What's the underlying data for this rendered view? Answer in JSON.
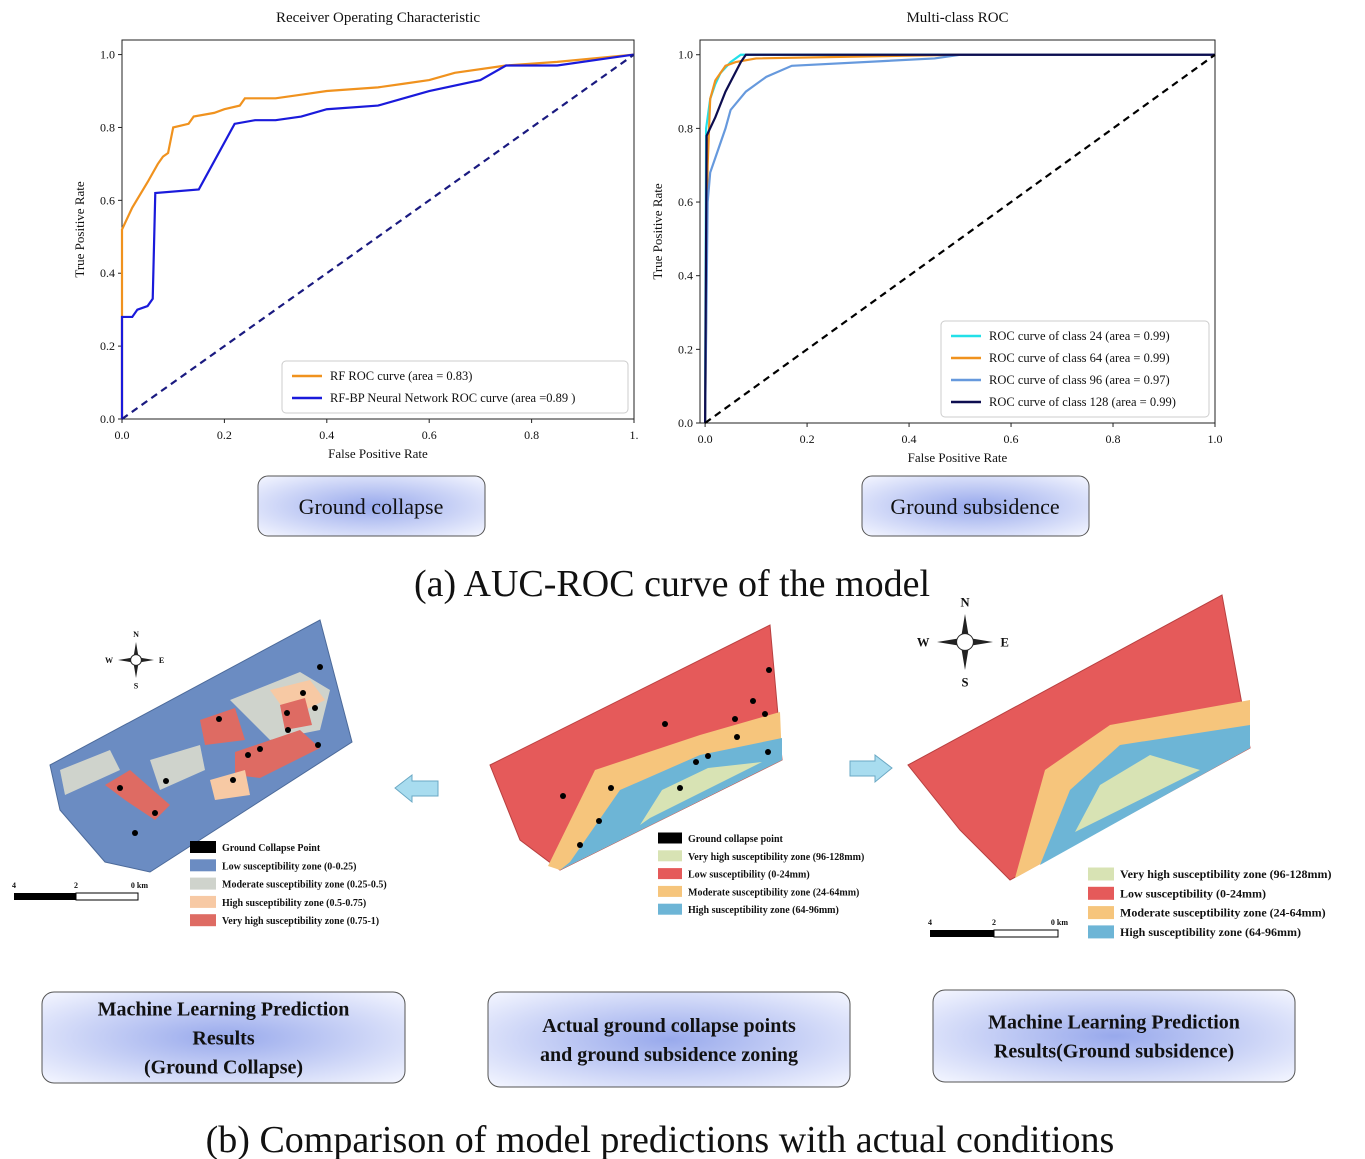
{
  "chart_data": [
    {
      "type": "line",
      "title": "Receiver Operating Characteristic",
      "xlabel": "False Positive Rate",
      "ylabel": "True Positive Rate",
      "xlim": [
        0,
        1
      ],
      "ylim": [
        0,
        1.04
      ],
      "xticks": [
        {
          "value": 0,
          "label": "0.0"
        },
        {
          "value": 0.2,
          "label": "0.2"
        },
        {
          "value": 0.4,
          "label": "0.4"
        },
        {
          "value": 0.6,
          "label": "0.6"
        },
        {
          "value": 0.8,
          "label": "0.8"
        },
        {
          "value": 1,
          "label": "1."
        }
      ],
      "yticks": [
        {
          "value": 0,
          "label": "0.0"
        },
        {
          "value": 0.2,
          "label": "0.2"
        },
        {
          "value": 0.4,
          "label": "0.4"
        },
        {
          "value": 0.6,
          "label": "0.6"
        },
        {
          "value": 0.8,
          "label": "0.8"
        },
        {
          "value": 1,
          "label": "1.0"
        }
      ],
      "legend": "lower right",
      "series": [
        {
          "name": "RF ROC curve (area = 0.83)",
          "color": "#f0921e",
          "x": [
            0,
            0,
            0.02,
            0.05,
            0.07,
            0.08,
            0.09,
            0.1,
            0.13,
            0.14,
            0.18,
            0.2,
            0.23,
            0.24,
            0.3,
            0.35,
            0.4,
            0.5,
            0.55,
            0.6,
            0.65,
            0.75,
            0.85,
            1
          ],
          "values": [
            0,
            0.52,
            0.58,
            0.65,
            0.7,
            0.72,
            0.73,
            0.8,
            0.81,
            0.83,
            0.84,
            0.85,
            0.86,
            0.88,
            0.88,
            0.89,
            0.9,
            0.91,
            0.92,
            0.93,
            0.95,
            0.97,
            0.98,
            1
          ]
        },
        {
          "name": "RF-BP Neural Network ROC curve (area =0.89 )",
          "color": "#1a1adb",
          "x": [
            0,
            0,
            0.02,
            0.03,
            0.05,
            0.06,
            0.065,
            0.15,
            0.22,
            0.26,
            0.3,
            0.35,
            0.4,
            0.5,
            0.55,
            0.6,
            0.7,
            0.75,
            0.85,
            0.95,
            1
          ],
          "values": [
            0,
            0.28,
            0.28,
            0.3,
            0.31,
            0.33,
            0.62,
            0.63,
            0.81,
            0.82,
            0.82,
            0.83,
            0.85,
            0.86,
            0.88,
            0.9,
            0.93,
            0.97,
            0.97,
            0.99,
            1
          ]
        },
        {
          "color": "#1a1a80",
          "dashed": true,
          "x": [
            0,
            1
          ],
          "values": [
            0,
            1
          ]
        }
      ]
    },
    {
      "type": "line",
      "title": "Multi-class ROC",
      "xlabel": "False Positive Rate",
      "ylabel": "True Positive Rate",
      "xlim": [
        -0.01,
        1
      ],
      "ylim": [
        0,
        1.04
      ],
      "xticks": [
        {
          "value": 0,
          "label": "0.0"
        },
        {
          "value": 0.2,
          "label": "0.2"
        },
        {
          "value": 0.4,
          "label": "0.4"
        },
        {
          "value": 0.6,
          "label": "0.6"
        },
        {
          "value": 0.8,
          "label": "0.8"
        },
        {
          "value": 1,
          "label": "1.0"
        }
      ],
      "yticks": [
        {
          "value": 0,
          "label": "0.0"
        },
        {
          "value": 0.2,
          "label": "0.2"
        },
        {
          "value": 0.4,
          "label": "0.4"
        },
        {
          "value": 0.6,
          "label": "0.6"
        },
        {
          "value": 0.8,
          "label": "0.8"
        },
        {
          "value": 1,
          "label": "1.0"
        }
      ],
      "legend": "lower right",
      "series": [
        {
          "name": "ROC curve of class 24 (area = 0.99)",
          "color": "#22e0e8",
          "x": [
            0,
            0.002,
            0.01,
            0.02,
            0.03,
            0.05,
            0.07,
            1
          ],
          "values": [
            0,
            0.8,
            0.88,
            0.92,
            0.95,
            0.98,
            1,
            1
          ]
        },
        {
          "name": "ROC curve of class 64 (area = 0.99)",
          "color": "#f0921e",
          "x": [
            0,
            0.005,
            0.01,
            0.02,
            0.04,
            0.06,
            0.1,
            0.5,
            1
          ],
          "values": [
            0,
            0.7,
            0.88,
            0.93,
            0.97,
            0.98,
            0.99,
            1,
            1
          ]
        },
        {
          "name": "ROC curve of class 96 (area = 0.97)",
          "color": "#6699dd",
          "x": [
            0,
            0.005,
            0.01,
            0.02,
            0.04,
            0.05,
            0.08,
            0.12,
            0.17,
            0.45,
            0.5,
            1
          ],
          "values": [
            0,
            0.6,
            0.68,
            0.72,
            0.8,
            0.85,
            0.9,
            0.94,
            0.97,
            0.99,
            1,
            1
          ]
        },
        {
          "name": "ROC curve of class 128 (area = 0.99)",
          "color": "#0d0d50",
          "x": [
            0,
            0.003,
            0.02,
            0.04,
            0.07,
            0.08,
            1
          ],
          "values": [
            0,
            0.78,
            0.83,
            0.9,
            0.98,
            1,
            1
          ]
        },
        {
          "color": "#000000",
          "dashed": true,
          "x": [
            0,
            1
          ],
          "values": [
            0,
            1
          ]
        }
      ]
    }
  ],
  "panel_labels": [
    "Ground collapse",
    "Ground subsidence"
  ],
  "caption_a": "(a) AUC-ROC curve of the model",
  "caption_b": "(b) Comparison of model predictions with actual conditions",
  "maps": [
    {
      "compass": [
        "N",
        "S",
        "W",
        "E"
      ],
      "scale": [
        "4",
        "2",
        "0 km"
      ],
      "legend": [
        {
          "label": "Ground Collapse Point",
          "color": "#000000"
        },
        {
          "label": "Low susceptibility zone (0-0.25)",
          "color": "#6b8cc2"
        },
        {
          "label": "Moderate susceptibility zone (0.25-0.5)",
          "color": "#cfd3cc"
        },
        {
          "label": "High susceptibility zone (0.5-0.75)",
          "color": "#f7c9a4"
        },
        {
          "label": "Very high susceptibility zone (0.75-1)",
          "color": "#de6b63"
        }
      ]
    },
    {
      "legend": [
        {
          "label": "Ground collapse point",
          "color": "#000000"
        },
        {
          "label": "Very high susceptibility zone (96-128mm)",
          "color": "#d8e3b4"
        },
        {
          "label": "Low susceptibility (0-24mm)",
          "color": "#e55a5a"
        },
        {
          "label": "Moderate susceptibility zone (24-64mm)",
          "color": "#f6c57c"
        },
        {
          "label": "High susceptibility zone (64-96mm)",
          "color": "#6db5d6"
        }
      ]
    },
    {
      "compass": [
        "N",
        "S",
        "W",
        "E"
      ],
      "scale": [
        "4",
        "2",
        "0 km"
      ],
      "legend": [
        {
          "label": "Very high susceptibility zone (96-128mm)",
          "color": "#d8e3b4"
        },
        {
          "label": "Low susceptibility (0-24mm)",
          "color": "#e55a5a"
        },
        {
          "label": "Moderate susceptibility zone (24-64mm)",
          "color": "#f6c57c"
        },
        {
          "label": "High susceptibility zone (64-96mm)",
          "color": "#6db5d6"
        }
      ]
    }
  ],
  "boxes": [
    [
      "Machine Learning Prediction",
      "Results",
      "(Ground Collapse)"
    ],
    [
      "Actual ground collapse points",
      "and ground subsidence zoning"
    ],
    [
      "Machine Learning Prediction",
      "Results(Ground subsidence)"
    ]
  ]
}
